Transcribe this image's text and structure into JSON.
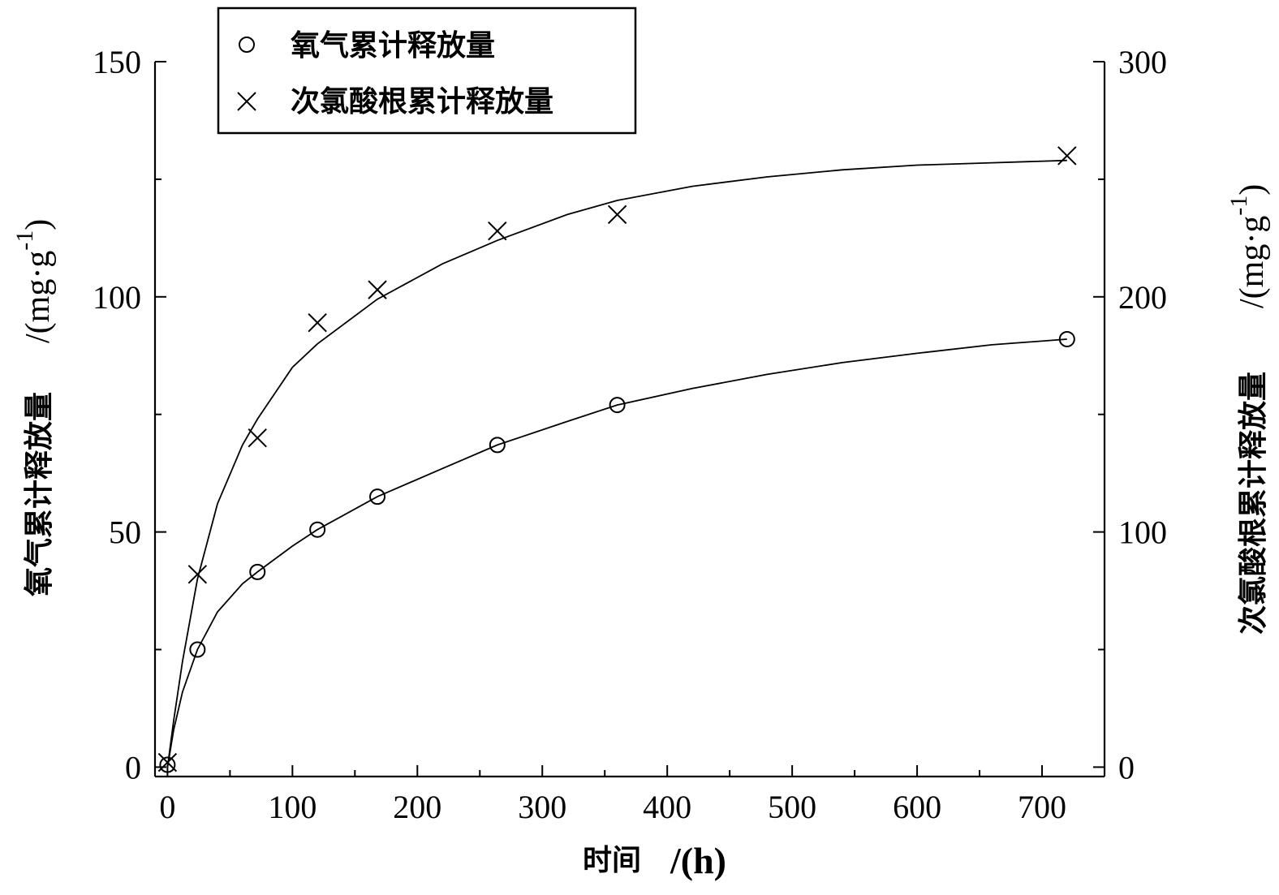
{
  "chart_data": {
    "type": "scatter",
    "title": "",
    "x_axis": {
      "label": "时间",
      "unit": "/(h)",
      "range": [
        -10,
        750
      ],
      "major_ticks": [
        0,
        100,
        200,
        300,
        400,
        500,
        600,
        700
      ],
      "minor_ticks": [
        50,
        150,
        250,
        350,
        450,
        550,
        650
      ]
    },
    "y_axis_left": {
      "label": "氧气累计释放量",
      "unit": "/(mg·g",
      "unit_sup": "-1",
      "unit_close": ")",
      "range": [
        -2,
        150
      ],
      "major_ticks": [
        0,
        50,
        100,
        150
      ],
      "minor_ticks": [
        25,
        75,
        125
      ]
    },
    "y_axis_right": {
      "label": "次氯酸根累计释放量",
      "unit": "/(mg·g",
      "unit_sup": "-1",
      "unit_close": ")",
      "range": [
        -4,
        300
      ],
      "major_ticks": [
        0,
        100,
        200,
        300
      ],
      "minor_ticks": [
        50,
        150,
        250
      ]
    },
    "legend": {
      "position": "top-left",
      "entries": [
        {
          "marker": "circle",
          "label": "氧气累计释放量"
        },
        {
          "marker": "cross",
          "label": "次氯酸根累计释放量"
        }
      ]
    },
    "series": [
      {
        "name": "氧气累计释放量",
        "axis": "left",
        "marker": "circle",
        "x": [
          0,
          24,
          72,
          120,
          168,
          264,
          360,
          720
        ],
        "y": [
          0.5,
          25,
          41.5,
          50.5,
          57.5,
          68.5,
          77,
          91
        ]
      },
      {
        "name": "次氯酸根累计释放量",
        "axis": "right",
        "marker": "cross",
        "x": [
          0,
          24,
          72,
          120,
          168,
          264,
          360,
          720
        ],
        "y": [
          2,
          82,
          140,
          189,
          203,
          228,
          235,
          260
        ]
      }
    ],
    "fit_curves": [
      {
        "axis": "left",
        "x": [
          0,
          5,
          12,
          24,
          40,
          60,
          72,
          100,
          120,
          168,
          220,
          264,
          320,
          360,
          420,
          480,
          540,
          600,
          660,
          720
        ],
        "y": [
          0,
          8,
          16,
          25,
          33,
          39,
          41.5,
          47,
          50.5,
          57.5,
          63.5,
          68.5,
          73.5,
          77,
          80.5,
          83.5,
          86,
          88,
          89.8,
          91
        ]
      },
      {
        "axis": "right",
        "x": [
          0,
          5,
          12,
          24,
          40,
          60,
          72,
          100,
          120,
          168,
          220,
          264,
          320,
          360,
          420,
          480,
          540,
          600,
          660,
          720
        ],
        "y": [
          0,
          20,
          45,
          80,
          112,
          137,
          148,
          170,
          180,
          199,
          214,
          224,
          235,
          241,
          247,
          251,
          254,
          256,
          257,
          258
        ]
      }
    ]
  }
}
